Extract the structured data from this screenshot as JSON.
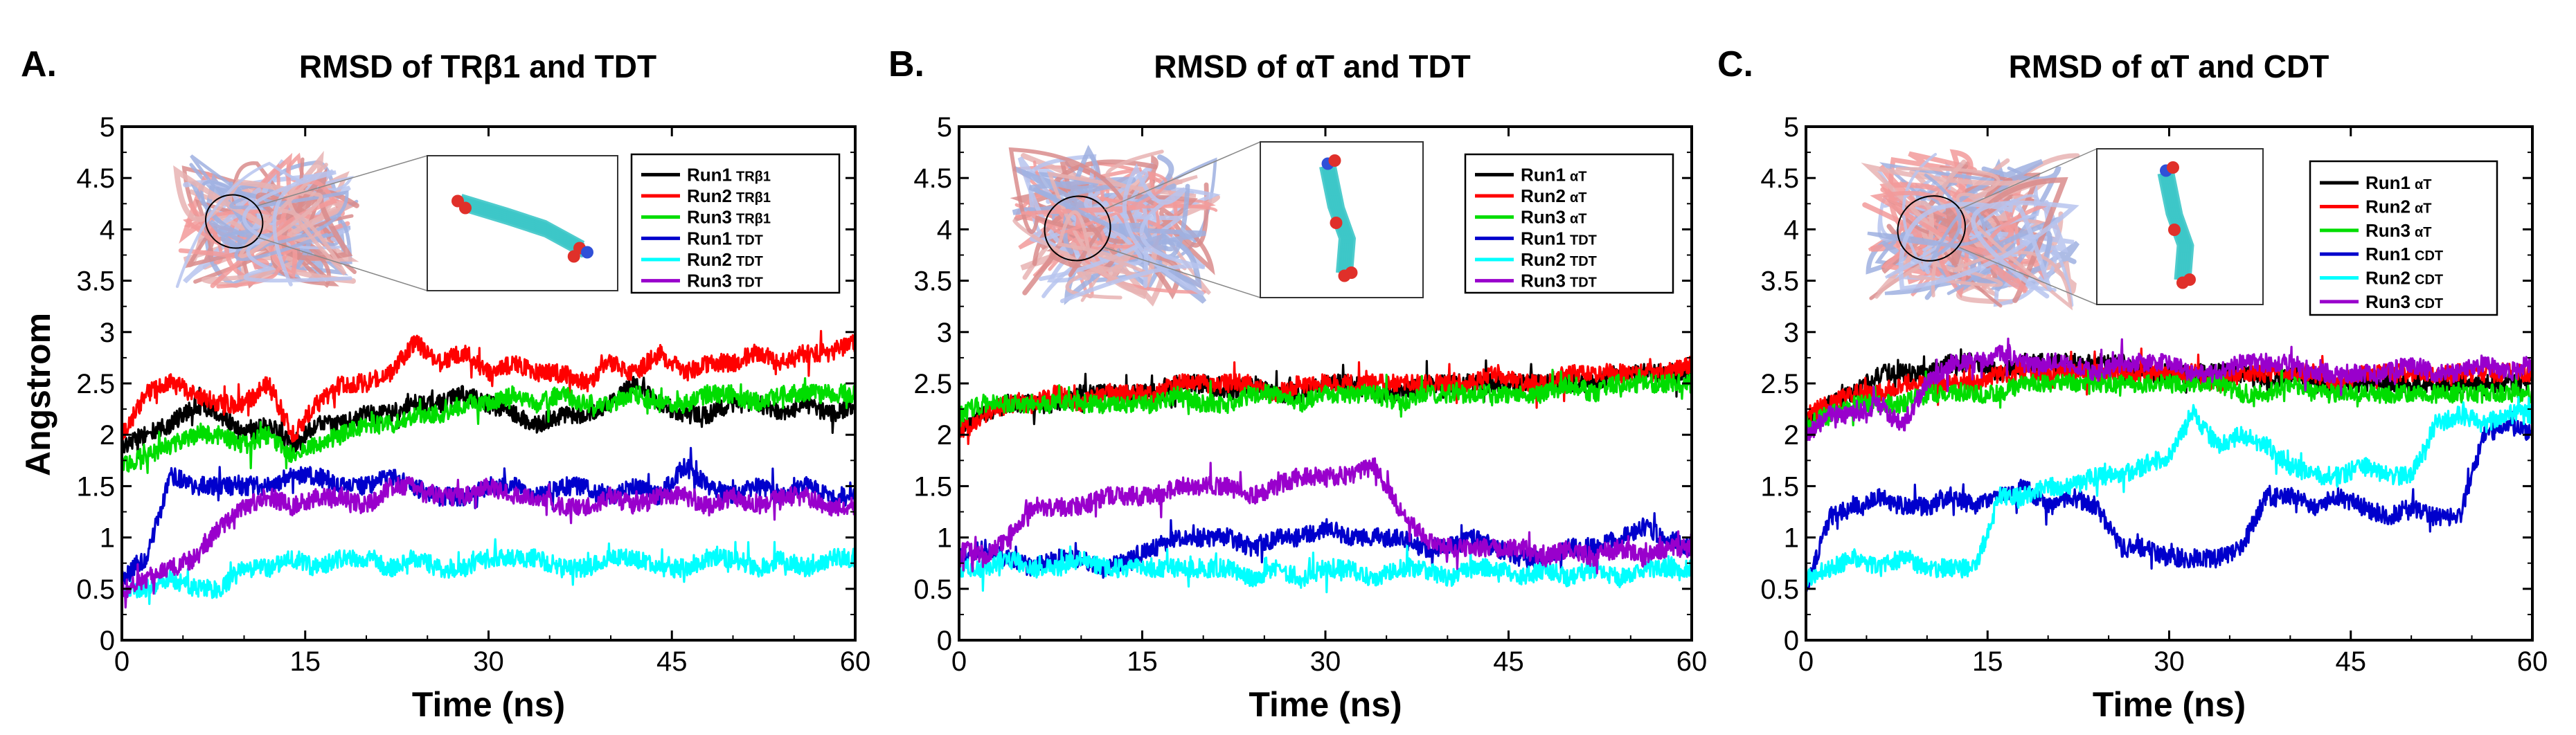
{
  "figure": {
    "y_axis_label": "Angstrom"
  },
  "chart_data": [
    {
      "type": "line",
      "panel": "A.",
      "title": "RMSD of TRβ1 and TDT",
      "xlabel": "Time (ns)",
      "ylabel": "Angstrom",
      "xlim": [
        0,
        60
      ],
      "ylim": [
        0,
        5
      ],
      "xticks": [
        0,
        15,
        30,
        45,
        60
      ],
      "yticks": [
        0,
        0.5,
        1,
        1.5,
        2,
        2.5,
        3,
        3.5,
        4,
        4.5,
        5
      ],
      "x": [
        0,
        2,
        4,
        6,
        8,
        10,
        12,
        14,
        16,
        18,
        20,
        22,
        24,
        26,
        28,
        30,
        32,
        34,
        36,
        38,
        40,
        42,
        44,
        46,
        48,
        50,
        52,
        54,
        56,
        58,
        60
      ],
      "series": [
        {
          "name": "Run1",
          "molecule": "TRβ1",
          "color": "#000000",
          "values": [
            1.9,
            2.0,
            2.1,
            2.3,
            2.2,
            2.0,
            2.1,
            1.9,
            2.1,
            2.1,
            2.2,
            2.2,
            2.3,
            2.3,
            2.4,
            2.3,
            2.2,
            2.1,
            2.2,
            2.2,
            2.3,
            2.5,
            2.3,
            2.2,
            2.2,
            2.3,
            2.3,
            2.2,
            2.3,
            2.2,
            2.3
          ]
        },
        {
          "name": "Run2",
          "molecule": "TRβ1",
          "color": "#ff0000",
          "values": [
            2.0,
            2.4,
            2.5,
            2.4,
            2.3,
            2.3,
            2.5,
            2.0,
            2.3,
            2.5,
            2.5,
            2.6,
            2.9,
            2.7,
            2.8,
            2.6,
            2.7,
            2.6,
            2.6,
            2.5,
            2.7,
            2.6,
            2.8,
            2.6,
            2.7,
            2.7,
            2.8,
            2.7,
            2.8,
            2.8,
            2.9
          ]
        },
        {
          "name": "Run3",
          "molecule": "TRβ1",
          "color": "#00dd00",
          "values": [
            1.7,
            1.8,
            1.9,
            2.0,
            2.0,
            1.9,
            2.0,
            1.8,
            1.9,
            2.0,
            2.1,
            2.1,
            2.2,
            2.2,
            2.3,
            2.3,
            2.4,
            2.3,
            2.4,
            2.3,
            2.3,
            2.4,
            2.3,
            2.3,
            2.4,
            2.4,
            2.3,
            2.4,
            2.4,
            2.4,
            2.4
          ]
        },
        {
          "name": "Run1",
          "molecule": "TDT",
          "color": "#0000cc",
          "values": [
            0.6,
            0.8,
            1.6,
            1.5,
            1.5,
            1.5,
            1.5,
            1.6,
            1.6,
            1.5,
            1.5,
            1.6,
            1.5,
            1.4,
            1.4,
            1.5,
            1.5,
            1.4,
            1.5,
            1.5,
            1.4,
            1.5,
            1.4,
            1.7,
            1.5,
            1.4,
            1.5,
            1.4,
            1.5,
            1.4,
            1.4
          ]
        },
        {
          "name": "Run2",
          "molecule": "TDT",
          "color": "#00ffff",
          "values": [
            0.5,
            0.5,
            0.6,
            0.5,
            0.5,
            0.7,
            0.7,
            0.8,
            0.7,
            0.8,
            0.8,
            0.7,
            0.8,
            0.7,
            0.7,
            0.8,
            0.8,
            0.8,
            0.7,
            0.7,
            0.8,
            0.8,
            0.7,
            0.7,
            0.8,
            0.8,
            0.7,
            0.8,
            0.7,
            0.8,
            0.8
          ]
        },
        {
          "name": "Run3",
          "molecule": "TDT",
          "color": "#9900cc",
          "values": [
            0.5,
            0.6,
            0.7,
            0.8,
            1.1,
            1.3,
            1.4,
            1.3,
            1.4,
            1.4,
            1.3,
            1.5,
            1.5,
            1.4,
            1.4,
            1.5,
            1.4,
            1.4,
            1.3,
            1.3,
            1.4,
            1.3,
            1.4,
            1.4,
            1.3,
            1.4,
            1.3,
            1.4,
            1.4,
            1.3,
            1.3
          ]
        }
      ]
    },
    {
      "type": "line",
      "panel": "B.",
      "title": "RMSD of αT and TDT",
      "xlabel": "Time (ns)",
      "ylabel": "",
      "xlim": [
        0,
        60
      ],
      "ylim": [
        0,
        5
      ],
      "xticks": [
        0,
        15,
        30,
        45,
        60
      ],
      "yticks": [
        0,
        0.5,
        1,
        1.5,
        2,
        2.5,
        3,
        3.5,
        4,
        4.5,
        5
      ],
      "x": [
        0,
        2,
        4,
        6,
        8,
        10,
        12,
        14,
        16,
        18,
        20,
        22,
        24,
        26,
        28,
        30,
        32,
        34,
        36,
        38,
        40,
        42,
        44,
        46,
        48,
        50,
        52,
        54,
        56,
        58,
        60
      ],
      "series": [
        {
          "name": "Run1",
          "molecule": "αT",
          "color": "#000000",
          "values": [
            2.1,
            2.2,
            2.3,
            2.3,
            2.3,
            2.4,
            2.4,
            2.4,
            2.4,
            2.5,
            2.5,
            2.4,
            2.5,
            2.4,
            2.4,
            2.5,
            2.5,
            2.4,
            2.4,
            2.5,
            2.5,
            2.5,
            2.5,
            2.5,
            2.5,
            2.5,
            2.5,
            2.6,
            2.6,
            2.6,
            2.6
          ]
        },
        {
          "name": "Run2",
          "molecule": "αT",
          "color": "#ff0000",
          "values": [
            2.0,
            2.2,
            2.3,
            2.3,
            2.4,
            2.3,
            2.4,
            2.4,
            2.4,
            2.5,
            2.5,
            2.5,
            2.5,
            2.4,
            2.5,
            2.5,
            2.5,
            2.5,
            2.5,
            2.5,
            2.5,
            2.5,
            2.6,
            2.5,
            2.5,
            2.6,
            2.6,
            2.6,
            2.6,
            2.6,
            2.7
          ]
        },
        {
          "name": "Run3",
          "molecule": "αT",
          "color": "#00dd00",
          "values": [
            2.2,
            2.3,
            2.3,
            2.3,
            2.3,
            2.3,
            2.3,
            2.3,
            2.3,
            2.4,
            2.3,
            2.3,
            2.4,
            2.4,
            2.3,
            2.4,
            2.4,
            2.4,
            2.3,
            2.4,
            2.4,
            2.4,
            2.4,
            2.4,
            2.4,
            2.5,
            2.4,
            2.5,
            2.5,
            2.5,
            2.5
          ]
        },
        {
          "name": "Run1",
          "molecule": "TDT",
          "color": "#0000cc",
          "values": [
            0.8,
            0.9,
            0.8,
            0.7,
            0.8,
            0.8,
            0.7,
            0.8,
            0.9,
            1.0,
            1.0,
            1.0,
            0.9,
            1.0,
            1.0,
            1.1,
            1.0,
            1.0,
            1.0,
            0.9,
            0.9,
            1.0,
            0.9,
            0.8,
            0.8,
            0.9,
            0.9,
            1.0,
            1.1,
            1.0,
            0.9
          ]
        },
        {
          "name": "Run2",
          "molecule": "TDT",
          "color": "#00ffff",
          "values": [
            0.7,
            0.7,
            0.8,
            0.7,
            0.7,
            0.8,
            0.7,
            0.7,
            0.7,
            0.7,
            0.7,
            0.7,
            0.6,
            0.7,
            0.6,
            0.7,
            0.7,
            0.6,
            0.7,
            0.7,
            0.6,
            0.7,
            0.7,
            0.6,
            0.7,
            0.6,
            0.7,
            0.6,
            0.7,
            0.7,
            0.7
          ]
        },
        {
          "name": "Run3",
          "molecule": "TDT",
          "color": "#9900cc",
          "values": [
            0.9,
            0.8,
            1.0,
            1.3,
            1.3,
            1.3,
            1.4,
            1.4,
            1.4,
            1.5,
            1.5,
            1.5,
            1.4,
            1.5,
            1.6,
            1.6,
            1.6,
            1.7,
            1.3,
            1.0,
            0.9,
            0.9,
            0.9,
            0.9,
            0.8,
            0.9,
            0.8,
            0.9,
            0.8,
            0.9,
            0.9
          ]
        }
      ]
    },
    {
      "type": "line",
      "panel": "C.",
      "title": "RMSD of αT and CDT",
      "xlabel": "Time (ns)",
      "ylabel": "",
      "xlim": [
        0,
        60
      ],
      "ylim": [
        0,
        5
      ],
      "xticks": [
        0,
        15,
        30,
        45,
        60
      ],
      "yticks": [
        0,
        0.5,
        1,
        1.5,
        2,
        2.5,
        3,
        3.5,
        4,
        4.5,
        5
      ],
      "x": [
        0,
        2,
        4,
        6,
        8,
        10,
        12,
        14,
        16,
        18,
        20,
        22,
        24,
        26,
        28,
        30,
        32,
        34,
        36,
        38,
        40,
        42,
        44,
        46,
        48,
        50,
        52,
        54,
        56,
        58,
        60
      ],
      "series": [
        {
          "name": "Run1",
          "molecule": "αT",
          "color": "#000000",
          "values": [
            2.1,
            2.3,
            2.4,
            2.6,
            2.6,
            2.6,
            2.7,
            2.7,
            2.6,
            2.7,
            2.7,
            2.7,
            2.7,
            2.7,
            2.6,
            2.6,
            2.6,
            2.6,
            2.6,
            2.5,
            2.6,
            2.5,
            2.5,
            2.5,
            2.5,
            2.5,
            2.5,
            2.5,
            2.5,
            2.5,
            2.5
          ]
        },
        {
          "name": "Run2",
          "molecule": "αT",
          "color": "#ff0000",
          "values": [
            2.2,
            2.3,
            2.4,
            2.4,
            2.5,
            2.5,
            2.5,
            2.5,
            2.6,
            2.6,
            2.6,
            2.6,
            2.6,
            2.6,
            2.6,
            2.6,
            2.6,
            2.5,
            2.6,
            2.6,
            2.6,
            2.6,
            2.5,
            2.6,
            2.6,
            2.6,
            2.6,
            2.6,
            2.6,
            2.6,
            2.6
          ]
        },
        {
          "name": "Run3",
          "molecule": "αT",
          "color": "#00dd00",
          "values": [
            2.1,
            2.2,
            2.3,
            2.3,
            2.3,
            2.4,
            2.4,
            2.4,
            2.4,
            2.5,
            2.5,
            2.5,
            2.5,
            2.5,
            2.5,
            2.5,
            2.5,
            2.5,
            2.4,
            2.4,
            2.5,
            2.4,
            2.4,
            2.4,
            2.4,
            2.4,
            2.4,
            2.4,
            2.4,
            2.4,
            2.4
          ]
        },
        {
          "name": "Run1",
          "molecule": "CDT",
          "color": "#0000cc",
          "values": [
            0.5,
            1.2,
            1.3,
            1.4,
            1.3,
            1.3,
            1.4,
            1.3,
            1.4,
            1.5,
            1.3,
            1.4,
            1.3,
            0.9,
            0.9,
            0.8,
            0.8,
            0.8,
            0.9,
            1.4,
            1.4,
            1.3,
            1.4,
            1.3,
            1.2,
            1.3,
            1.2,
            1.2,
            2.0,
            2.1,
            2.0
          ]
        },
        {
          "name": "Run2",
          "molecule": "CDT",
          "color": "#00ffff",
          "values": [
            0.6,
            0.7,
            0.8,
            0.7,
            0.8,
            0.7,
            0.7,
            0.7,
            1.4,
            1.4,
            1.5,
            1.5,
            1.6,
            1.6,
            1.7,
            1.8,
            2.2,
            1.9,
            2.0,
            1.9,
            1.7,
            1.6,
            1.6,
            1.7,
            1.6,
            1.6,
            2.1,
            2.2,
            2.1,
            2.2,
            2.2
          ]
        },
        {
          "name": "Run3",
          "molecule": "CDT",
          "color": "#9900cc",
          "values": [
            2.0,
            2.2,
            2.2,
            2.3,
            2.1,
            2.5,
            2.7,
            2.7,
            2.8,
            2.7,
            2.7,
            2.7,
            2.6,
            2.7,
            2.7,
            2.7,
            2.6,
            2.6,
            2.7,
            2.7,
            2.7,
            2.6,
            2.6,
            2.6,
            2.6,
            2.7,
            2.6,
            2.6,
            2.7,
            2.6,
            2.7
          ]
        }
      ]
    }
  ]
}
